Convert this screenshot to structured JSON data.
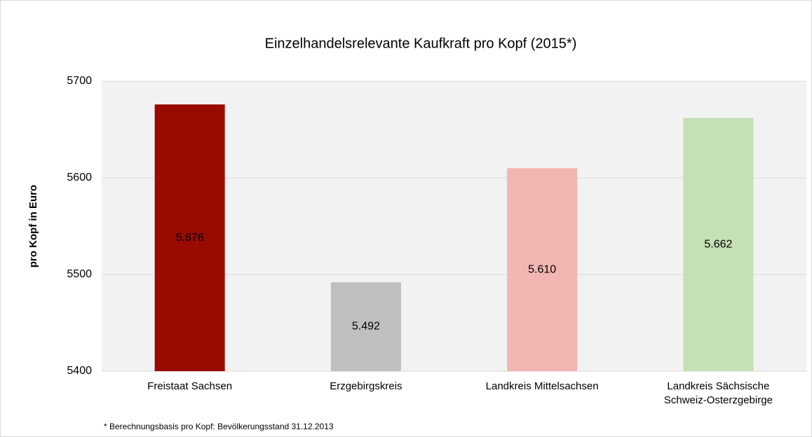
{
  "chart_data": {
    "type": "bar",
    "title": "Einzelhandelsrelevante Kaufkraft pro Kopf (2015*)",
    "y_label": "pro Kopf in Euro",
    "footnote": "* Berechnungsbasis pro Kopf: Bevölkerungsstand  31.12.2013",
    "categories": [
      "Freistaat Sachsen",
      "Erzgebirgskreis",
      "Landkreis Mittelsachsen",
      "Landkreis Sächsische\nSchweiz-Osterzgebirge"
    ],
    "values": [
      5676,
      5492,
      5610,
      5662
    ],
    "value_labels": [
      "5.676",
      "5.492",
      "5.610",
      "5.662"
    ],
    "colors": [
      "#990a00",
      "#bfbfbf",
      "#f2b6b2",
      "#c5e0b4"
    ],
    "ylim": [
      5400,
      5700
    ],
    "yticks": [
      5400,
      5500,
      5600,
      5700
    ],
    "grid": true
  }
}
